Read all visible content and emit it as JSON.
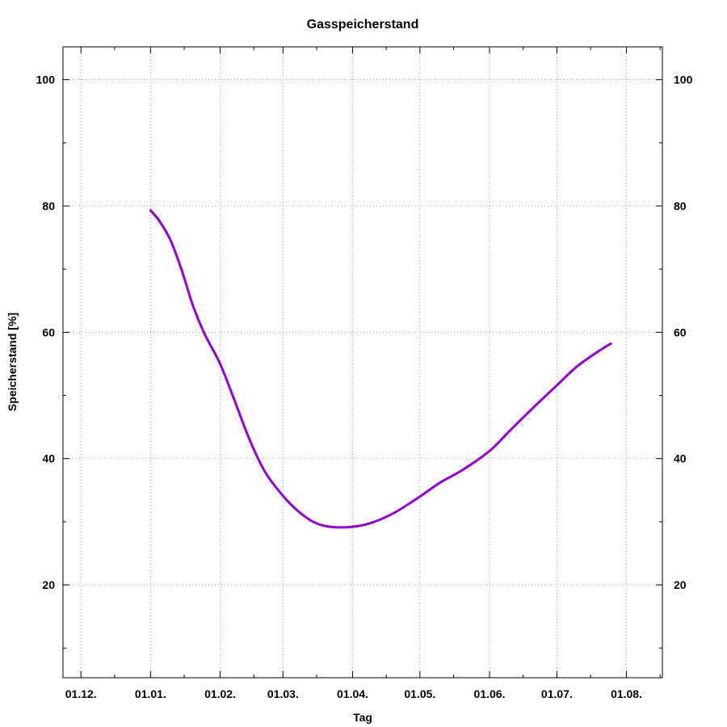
{
  "chart_data": {
    "type": "line",
    "title": "Gasspeicherstand",
    "xlabel": "Tag",
    "ylabel": "Speicherstand [%]",
    "x_ticks": [
      "01.12.",
      "01.01.",
      "01.02.",
      "01.03.",
      "01.04.",
      "01.05.",
      "01.06.",
      "01.07.",
      "01.08."
    ],
    "x_range": [
      "2022-11-23",
      "2023-08-17"
    ],
    "y_ticks": [
      20,
      40,
      60,
      80,
      100
    ],
    "ylim": [
      5.3,
      105.2
    ],
    "mirror_y_axis": true,
    "grid": true,
    "series": [
      {
        "color": "#9400d3",
        "points": [
          [
            "2023-01-01",
            79.3
          ],
          [
            "2023-01-05",
            77.6
          ],
          [
            "2023-01-10",
            74.5
          ],
          [
            "2023-01-15",
            69.7
          ],
          [
            "2023-01-20",
            64.1
          ],
          [
            "2023-01-25",
            59.8
          ],
          [
            "2023-02-01",
            55.0
          ],
          [
            "2023-02-07",
            49.6
          ],
          [
            "2023-02-14",
            43.1
          ],
          [
            "2023-02-21",
            37.9
          ],
          [
            "2023-03-01",
            34.1
          ],
          [
            "2023-03-08",
            31.6
          ],
          [
            "2023-03-15",
            29.9
          ],
          [
            "2023-03-22",
            29.2
          ],
          [
            "2023-04-01",
            29.2
          ],
          [
            "2023-04-10",
            29.9
          ],
          [
            "2023-04-20",
            31.5
          ],
          [
            "2023-05-01",
            34.0
          ],
          [
            "2023-05-10",
            36.2
          ],
          [
            "2023-05-20",
            38.2
          ],
          [
            "2023-06-01",
            41.2
          ],
          [
            "2023-06-10",
            44.4
          ],
          [
            "2023-06-20",
            47.9
          ],
          [
            "2023-07-01",
            51.6
          ],
          [
            "2023-07-10",
            54.6
          ],
          [
            "2023-07-20",
            57.1
          ],
          [
            "2023-07-25",
            58.2
          ]
        ]
      }
    ]
  }
}
